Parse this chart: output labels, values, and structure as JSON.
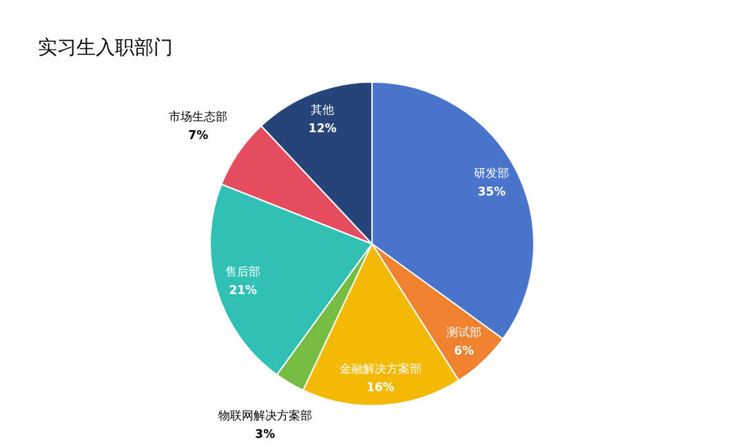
{
  "chart_data": {
    "type": "pie",
    "title": "实习生入职部门",
    "categories": [
      "研发部",
      "测试部",
      "金融解决方案部",
      "物联网解决方案部",
      "售后部",
      "市场生态部",
      "其他"
    ],
    "values": [
      35,
      6,
      16,
      3,
      21,
      7,
      12
    ],
    "value_labels": [
      "35%",
      "6%",
      "16%",
      "3%",
      "21%",
      "7%",
      "12%"
    ],
    "colors": [
      "#4874cb",
      "#ee822f",
      "#f2ba02",
      "#75bd42",
      "#30c0b4",
      "#e54c5e",
      "#264478"
    ]
  }
}
